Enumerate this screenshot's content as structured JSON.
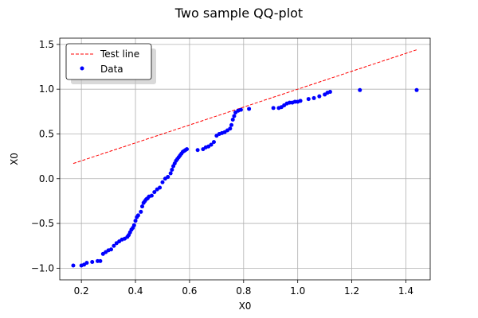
{
  "chart_data": {
    "type": "scatter",
    "title": "Two sample QQ-plot",
    "xlabel": "X0",
    "ylabel": "X0",
    "xlim": [
      0.12,
      1.49
    ],
    "ylim": [
      -1.13,
      1.57
    ],
    "xticks": [
      0.2,
      0.4,
      0.6,
      0.8,
      1.0,
      1.2,
      1.4
    ],
    "yticks": [
      -1.0,
      -0.5,
      0.0,
      0.5,
      1.0,
      1.5
    ],
    "xtick_labels": [
      "0.2",
      "0.4",
      "0.6",
      "0.8",
      "1.0",
      "1.2",
      "1.4"
    ],
    "ytick_labels": [
      "−1.0",
      "−0.5",
      "0.0",
      "0.5",
      "1.0",
      "1.5"
    ],
    "grid": true,
    "legend": {
      "position": "top-left",
      "entries": [
        "Test line",
        "Data"
      ]
    },
    "series": [
      {
        "name": "Test line",
        "type": "line",
        "style": "dashed",
        "color": "#ff0000",
        "x": [
          0.17,
          1.44
        ],
        "y": [
          0.17,
          1.44
        ]
      },
      {
        "name": "Data",
        "type": "scatter",
        "color": "#0000ff",
        "x": [
          0.17,
          0.2,
          0.21,
          0.22,
          0.24,
          0.26,
          0.27,
          0.28,
          0.29,
          0.3,
          0.31,
          0.32,
          0.33,
          0.34,
          0.35,
          0.36,
          0.37,
          0.375,
          0.38,
          0.385,
          0.39,
          0.395,
          0.4,
          0.405,
          0.41,
          0.42,
          0.425,
          0.43,
          0.435,
          0.44,
          0.445,
          0.45,
          0.46,
          0.47,
          0.48,
          0.49,
          0.5,
          0.51,
          0.52,
          0.53,
          0.535,
          0.54,
          0.545,
          0.55,
          0.555,
          0.56,
          0.565,
          0.57,
          0.575,
          0.58,
          0.585,
          0.59,
          0.63,
          0.65,
          0.66,
          0.67,
          0.68,
          0.69,
          0.7,
          0.71,
          0.72,
          0.73,
          0.74,
          0.75,
          0.755,
          0.76,
          0.765,
          0.77,
          0.78,
          0.79,
          0.82,
          0.91,
          0.93,
          0.94,
          0.95,
          0.96,
          0.97,
          0.98,
          0.99,
          1.0,
          1.01,
          1.04,
          1.06,
          1.08,
          1.1,
          1.11,
          1.12,
          1.23,
          1.44
        ],
        "y": [
          -0.97,
          -0.97,
          -0.96,
          -0.94,
          -0.93,
          -0.92,
          -0.92,
          -0.84,
          -0.82,
          -0.8,
          -0.79,
          -0.75,
          -0.72,
          -0.7,
          -0.68,
          -0.67,
          -0.65,
          -0.63,
          -0.6,
          -0.57,
          -0.55,
          -0.52,
          -0.47,
          -0.43,
          -0.41,
          -0.37,
          -0.31,
          -0.27,
          -0.25,
          -0.23,
          -0.22,
          -0.2,
          -0.19,
          -0.15,
          -0.12,
          -0.1,
          -0.04,
          0.0,
          0.02,
          0.06,
          0.1,
          0.14,
          0.17,
          0.2,
          0.22,
          0.24,
          0.26,
          0.28,
          0.3,
          0.31,
          0.32,
          0.33,
          0.32,
          0.33,
          0.35,
          0.36,
          0.38,
          0.41,
          0.48,
          0.5,
          0.51,
          0.52,
          0.54,
          0.56,
          0.6,
          0.66,
          0.7,
          0.74,
          0.76,
          0.77,
          0.78,
          0.79,
          0.79,
          0.8,
          0.82,
          0.84,
          0.85,
          0.85,
          0.86,
          0.86,
          0.87,
          0.89,
          0.9,
          0.92,
          0.94,
          0.96,
          0.97,
          0.99,
          0.99
        ]
      }
    ]
  }
}
